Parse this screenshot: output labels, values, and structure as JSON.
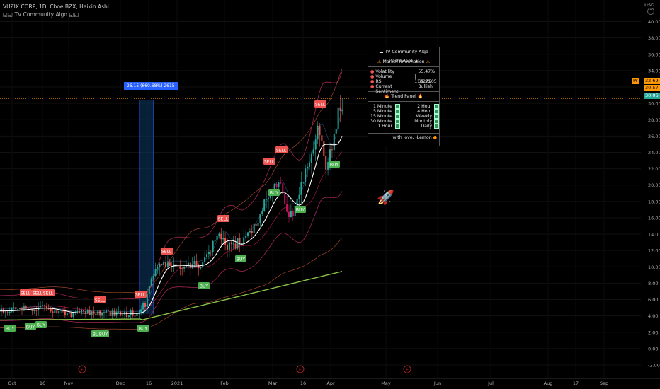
{
  "legend": {
    "symbol_line": "VUZIX CORP, 1D, Cboe BZX, Heikin Ashi",
    "indicator_line": "◱◱ TV Community Algo ◱◱"
  },
  "axis": {
    "currency": "USD",
    "y_ticks": [
      "40.00",
      "38.00",
      "36.00",
      "34.00",
      "32.00",
      "30.00",
      "28.00",
      "26.00",
      "24.00",
      "22.00",
      "20.00",
      "18.00",
      "16.00",
      "14.00",
      "12.00",
      "10.00",
      "8.00",
      "6.00",
      "4.00",
      "2.00",
      "0.00",
      "-2.00"
    ],
    "x_ticks": [
      "Oct",
      "16",
      "Nov",
      "Dec",
      "16",
      "2021",
      "Feb",
      "Mar",
      "16",
      "Apr",
      "May",
      "Jun",
      "Jul",
      "Aug",
      "17",
      "Sep"
    ]
  },
  "price_tags": {
    "upper": "32.69",
    "middle": "30.57",
    "last": "30.06",
    "prefix": "Pr"
  },
  "measure_tooltip": "26.15 (660.68%) 2615",
  "signals": {
    "sell": [
      "SELL",
      "SELL",
      "SELL",
      "SELL",
      "SELL",
      "SELL",
      "SELL",
      "SELL",
      "SELL",
      "SELL",
      "SELL"
    ],
    "buy": [
      "BUY",
      "BUY",
      "BUY",
      "BUY",
      "BUY",
      "BUY",
      "BUY",
      "BUY",
      "BUY",
      "BUY",
      "BUY"
    ]
  },
  "earnings_marker": "E",
  "dashboard": {
    "title": "TV Community Algo Dashboard",
    "market_header": "Market Information",
    "market_rows": [
      {
        "k": "Volatility",
        "v": "55.47%"
      },
      {
        "k": "Volume",
        "v": "11827505"
      },
      {
        "k": "RSI",
        "v": "69.21"
      },
      {
        "k": "Current Sentiment",
        "v": "Bullish"
      }
    ],
    "trend_header": "Trend Panel",
    "trend_rows": [
      {
        "a": "1 Minute",
        "b": "2 Hour"
      },
      {
        "a": "5 Minute",
        "b": "4 Hour"
      },
      {
        "a": "15 Minute",
        "b": "Weekly"
      },
      {
        "a": "30 Minute",
        "b": "Monthly"
      },
      {
        "a": "1 Hour",
        "b": "Daily"
      }
    ],
    "footer": "with love, -Lemon"
  },
  "colors": {
    "background": "#000000",
    "bull": "#26a69a",
    "bear": "#ef5350",
    "sell_label": "#ef5350",
    "buy_label": "#4caf50",
    "ma_long": "#8bc34a",
    "ma_short": "#ffffff",
    "band": "#e91e63",
    "tooltip": "#2962ff",
    "price_orange": "#ff9800"
  },
  "chart_data": {
    "type": "candlestick",
    "ylim": [
      -2,
      40
    ],
    "series": [
      {
        "name": "VUZIX CORP",
        "style": "heikin-ashi"
      }
    ],
    "approx_close_path": [
      {
        "x": "Oct",
        "y": 4.5
      },
      {
        "x": "16",
        "y": 4.9
      },
      {
        "x": "Nov",
        "y": 4.4
      },
      {
        "x": "Dec",
        "y": 4.3
      },
      {
        "x": "16",
        "y": 9.8
      },
      {
        "x": "2021",
        "y": 10.5
      },
      {
        "x": "Feb",
        "y": 13.0
      },
      {
        "x": "Mar",
        "y": 19.0
      },
      {
        "x": "16",
        "y": 22.0
      },
      {
        "x": "Apr",
        "y": 30.06
      }
    ]
  }
}
